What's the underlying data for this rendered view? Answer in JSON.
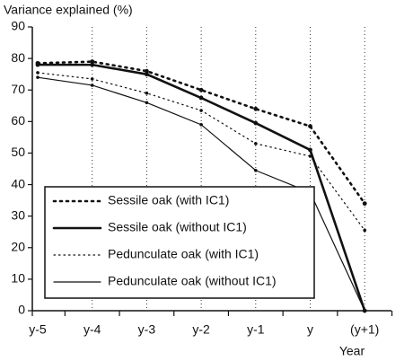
{
  "chart_data": {
    "type": "line",
    "title": "Variance explained  (%)",
    "x_label": "Year",
    "categories": [
      "y-5",
      "y-4",
      "y-3",
      "y-2",
      "y-1",
      "y",
      "(y+1)"
    ],
    "ylim": [
      0,
      90
    ],
    "yticks": [
      0,
      10,
      20,
      30,
      40,
      50,
      60,
      70,
      80,
      90
    ],
    "grid": true,
    "legend": "lower left",
    "series": [
      {
        "name": "Sessile oak  (with IC1)",
        "color": "#111111",
        "style": "dotted",
        "width": 2.6,
        "values": [
          78.5,
          79,
          76,
          70,
          64,
          58.5,
          34
        ]
      },
      {
        "name": "Sessile oak  (without IC1)",
        "color": "#111111",
        "style": "solid",
        "width": 2.6,
        "values": [
          78,
          78,
          75,
          67.5,
          59.5,
          51,
          0
        ]
      },
      {
        "name": "Pedunculate oak (with IC1)",
        "color": "#111111",
        "style": "dotted",
        "width": 1.2,
        "values": [
          75.5,
          73.5,
          69,
          63.5,
          53,
          49,
          25.5
        ]
      },
      {
        "name": "Pedunculate oak (without IC1)",
        "color": "#111111",
        "style": "solid",
        "width": 1.2,
        "values": [
          74,
          71.5,
          66,
          59,
          44.5,
          37.5,
          0
        ]
      }
    ]
  }
}
